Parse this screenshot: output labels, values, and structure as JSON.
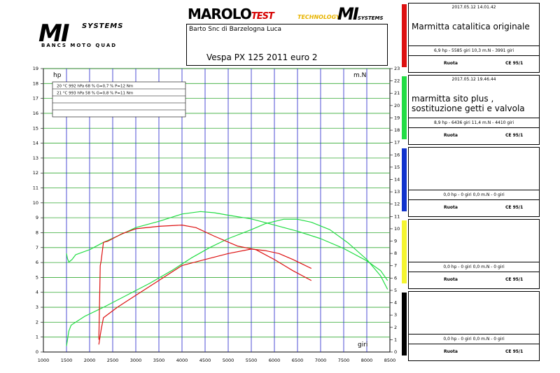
{
  "header": {
    "logo_left_main": "MI",
    "logo_left_systems": "SYSTEMS",
    "logo_left_sub": "BANCS MOTO QUAD",
    "marolo": "MAROLO",
    "marolo_test": "TEST",
    "technology": "TECHNOLOGY",
    "logo_right_main": "MI",
    "logo_right_systems": "SYSTEMS",
    "company": "Barto Snc di Barzelogna Luca",
    "model": "Vespa PX 125 2011 euro 2"
  },
  "colors": {
    "green": "#22dd44",
    "red": "#dd1111",
    "blue": "#1133cc",
    "yellow": "#f5f530",
    "black": "#000000",
    "grid_v": "#2222cc",
    "grid_h": "#33aa33"
  },
  "panels": [
    {
      "color": "red",
      "timestamp": "2017.05.12 14.01.42",
      "description": "Marmitta catalitica originale",
      "stats": "6,9 hp - 5585 giri      10,3 m.N - 3991 giri",
      "foot_left": "Ruota",
      "foot_right": "CE 95/1"
    },
    {
      "color": "green",
      "timestamp": "2017.05.12 19.46.44",
      "description": "marmitta sito plus ,\n sostituzione  getti e valvola",
      "stats": "8,9 hp - 6436 giri      11,4 m.N - 4410 giri",
      "foot_left": "Ruota",
      "foot_right": "CE 95/1"
    },
    {
      "color": "blue",
      "timestamp": "",
      "description": "",
      "stats": "0,0 hp - 0 giri      0,0 m.N - 0 giri",
      "foot_left": "Ruota",
      "foot_right": "CE 95/1"
    },
    {
      "color": "yellow",
      "timestamp": "",
      "description": "",
      "stats": "0,0 hp - 0 giri      0,0 m.N - 0 giri",
      "foot_left": "Ruota",
      "foot_right": "CE 95/1"
    },
    {
      "color": "black",
      "timestamp": "",
      "description": "",
      "stats": "0,0 hp - 0 giri      0,0 m.N - 0 giri",
      "foot_left": "Ruota",
      "foot_right": "CE 95/1"
    }
  ],
  "conditions_rows": [
    "20 °C   992 hPa   68 %   G=0,7 %   P=12 Nm",
    "21 °C   993 hPa   58 %   G=0,8 %   P=11 Nm"
  ],
  "chart_data": {
    "type": "line",
    "xlabel": "giri",
    "ylabel_left": "hp",
    "ylabel_right": "m.N",
    "xlim": [
      1000,
      8500
    ],
    "ylim_left": [
      0,
      19
    ],
    "ylim_right": [
      0,
      23
    ],
    "x_ticks": [
      1000,
      1500,
      2000,
      2500,
      3000,
      3500,
      4000,
      4500,
      5000,
      5500,
      6000,
      6500,
      7000,
      7500,
      8000,
      8500
    ],
    "y_ticks_left": [
      0,
      1,
      2,
      3,
      4,
      5,
      6,
      7,
      8,
      9,
      10,
      11,
      12,
      13,
      14,
      15,
      16,
      17,
      18,
      19
    ],
    "y_ticks_right": [
      0,
      1,
      2,
      3,
      4,
      5,
      6,
      7,
      8,
      9,
      10,
      11,
      12,
      13,
      14,
      15,
      16,
      17,
      18,
      19,
      20,
      21,
      22,
      23
    ],
    "series": [
      {
        "color": "green",
        "axis": "left",
        "kind": "power",
        "x": [
          1500,
          1550,
          1600,
          1900,
          2300,
          2800,
          3300,
          3800,
          4200,
          4600,
          5000,
          5500,
          5800,
          6200,
          6500,
          6800,
          7200,
          7600,
          8000,
          8300,
          8450
        ],
        "y": [
          0.4,
          1.4,
          1.8,
          2.4,
          3.0,
          3.8,
          4.6,
          5.5,
          6.3,
          7.0,
          7.6,
          8.2,
          8.6,
          8.9,
          8.9,
          8.7,
          8.2,
          7.3,
          6.2,
          5.1,
          4.2
        ]
      },
      {
        "color": "green",
        "axis": "right",
        "kind": "torque",
        "x": [
          1500,
          1520,
          1550,
          1620,
          1700,
          2000,
          2300,
          2600,
          3000,
          3500,
          4000,
          4400,
          4700,
          5000,
          5500,
          6000,
          6500,
          7000,
          7500,
          8000,
          8300,
          8450
        ],
        "y": [
          8.0,
          7.6,
          7.3,
          7.5,
          7.9,
          8.3,
          8.9,
          9.4,
          10.1,
          10.6,
          11.2,
          11.4,
          11.3,
          11.1,
          10.8,
          10.3,
          9.8,
          9.2,
          8.4,
          7.4,
          6.6,
          5.8
        ]
      },
      {
        "color": "red",
        "axis": "left",
        "kind": "power",
        "x": [
          2200,
          2250,
          2300,
          2600,
          3000,
          3500,
          4000,
          4500,
          5000,
          5500,
          5800,
          6100,
          6400,
          6800
        ],
        "y": [
          0.5,
          1.5,
          2.3,
          3.0,
          3.8,
          4.8,
          5.8,
          6.2,
          6.6,
          6.9,
          6.8,
          6.6,
          6.2,
          5.6
        ]
      },
      {
        "color": "red",
        "axis": "right",
        "kind": "torque",
        "x": [
          2200,
          2230,
          2250,
          2300,
          2400,
          2700,
          3000,
          3500,
          4000,
          4300,
          4700,
          5200,
          5600,
          6000,
          6400,
          6800
        ],
        "y": [
          1.0,
          7.0,
          7.4,
          8.9,
          9.0,
          9.6,
          10.0,
          10.2,
          10.3,
          10.1,
          9.4,
          8.6,
          8.3,
          7.5,
          6.6,
          5.8
        ]
      }
    ]
  }
}
